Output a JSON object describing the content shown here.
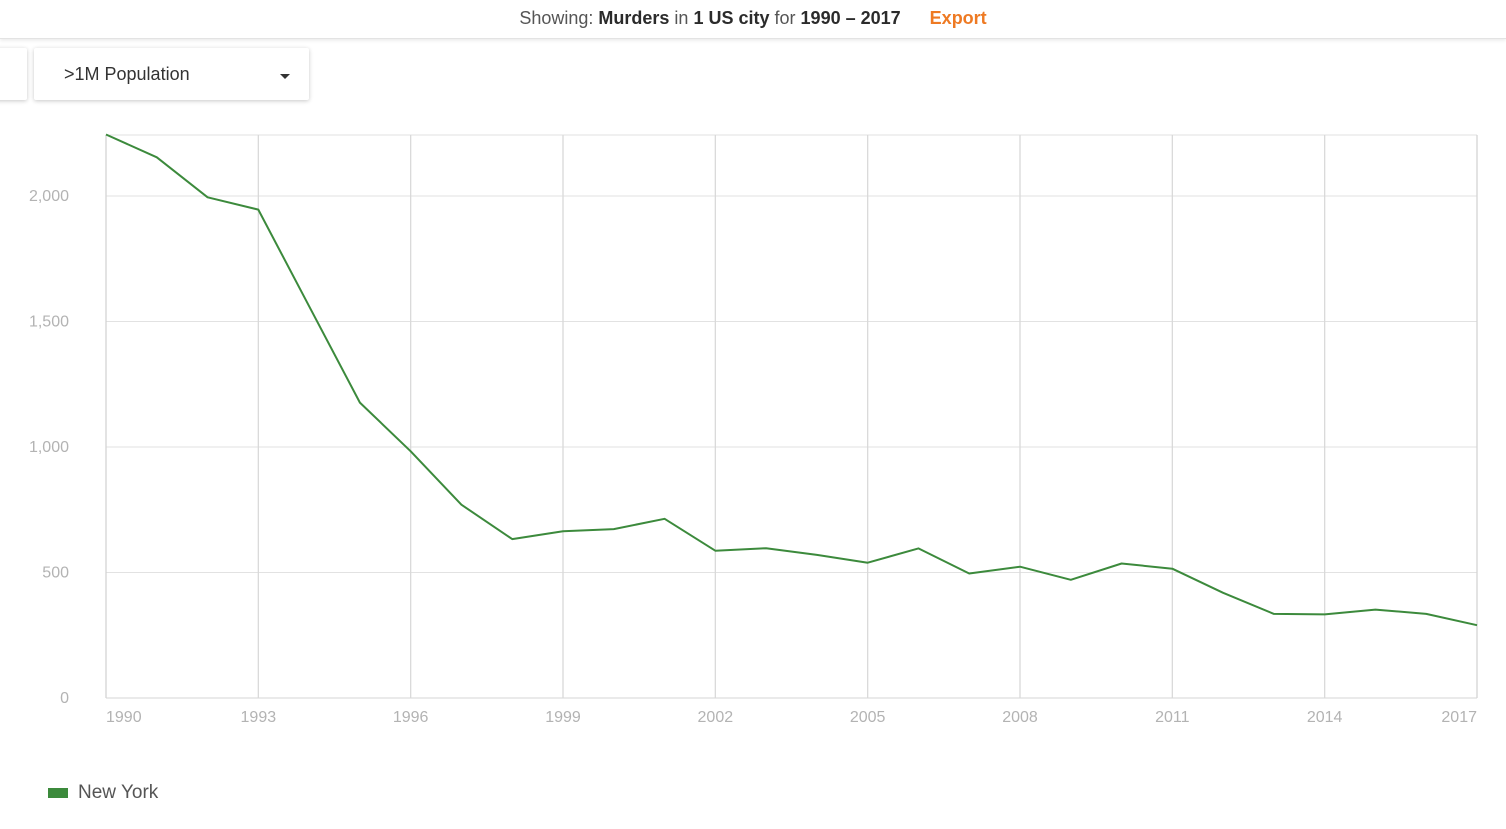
{
  "header": {
    "prefix": "Showing:",
    "metric": "Murders",
    "word_in": "in",
    "scope": "1 US city",
    "word_for": "for",
    "range": "1990 – 2017",
    "export_label": "Export",
    "accent_color": "#ee7a23"
  },
  "filter": {
    "selected": ">1M Population"
  },
  "colors": {
    "series": "#3c8a3c",
    "grid": "#e2e2e2",
    "axis_text": "#b3b3b3"
  },
  "chart_data": {
    "type": "line",
    "x": [
      1990,
      1991,
      1992,
      1993,
      1994,
      1995,
      1996,
      1997,
      1998,
      1999,
      2000,
      2001,
      2002,
      2003,
      2004,
      2005,
      2006,
      2007,
      2008,
      2009,
      2010,
      2011,
      2012,
      2013,
      2014,
      2015,
      2016,
      2017
    ],
    "series": [
      {
        "name": "New York",
        "values": [
          2245,
          2154,
          1995,
          1946,
          1561,
          1177,
          983,
          770,
          633,
          664,
          673,
          714,
          587,
          597,
          570,
          539,
          596,
          496,
          523,
          471,
          536,
          515,
          419,
          335,
          333,
          352,
          335,
          290
        ]
      }
    ],
    "xticks": [
      "1990",
      "1993",
      "1996",
      "1999",
      "2002",
      "2005",
      "2008",
      "2011",
      "2014",
      "2017"
    ],
    "yticks": [
      "0",
      "500",
      "1,000",
      "1,500",
      "2,000"
    ],
    "xlim": [
      1990,
      2017
    ],
    "ylim": [
      0,
      2245
    ],
    "grid": true,
    "legend": "bottom-left"
  }
}
